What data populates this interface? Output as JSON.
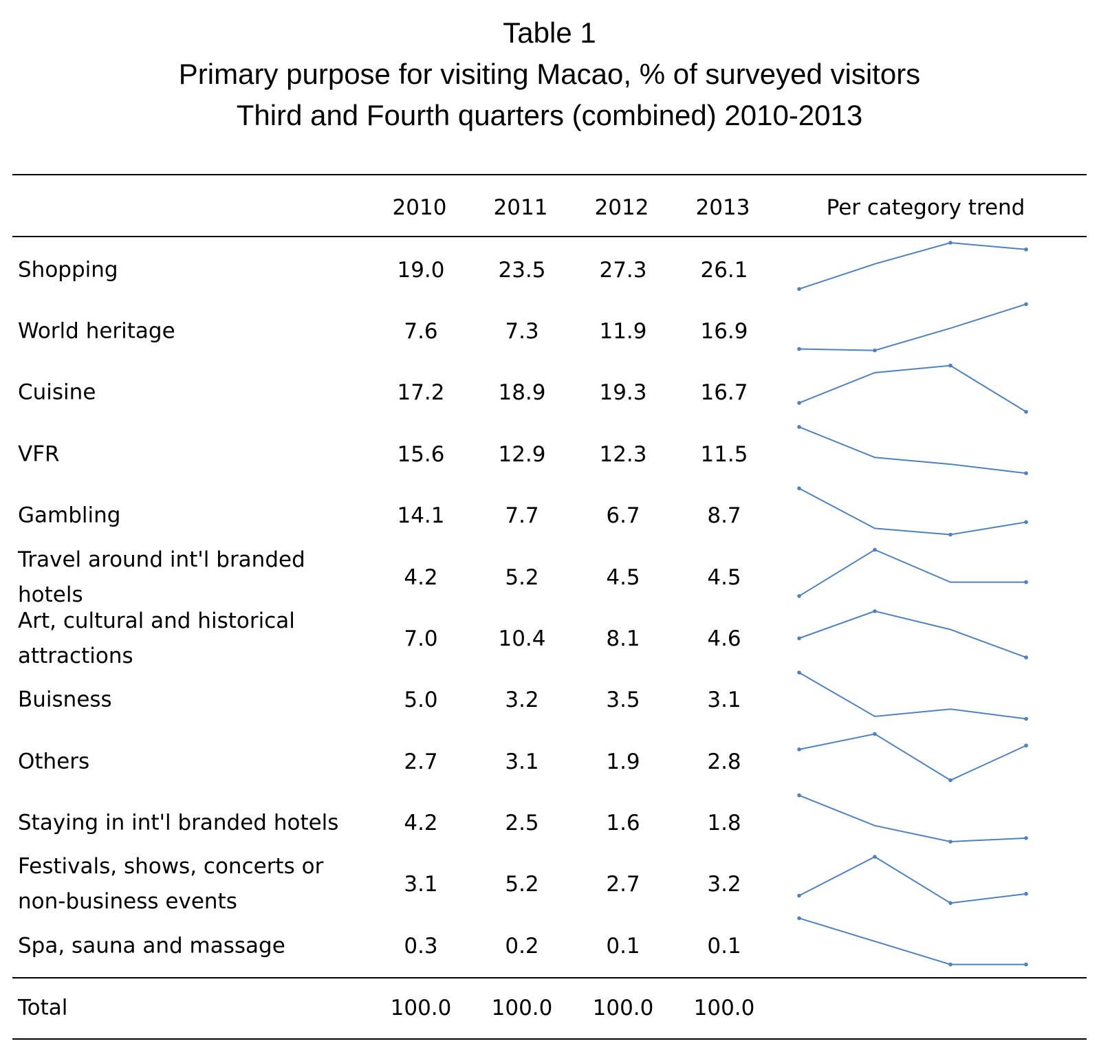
{
  "titles": {
    "line1": "Table 1",
    "line2": "Primary purpose for visiting Macao, % of surveyed visitors",
    "line3": "Third and Fourth quarters (combined) 2010-2013"
  },
  "header": {
    "years": [
      "2010",
      "2011",
      "2012",
      "2013"
    ],
    "trend": "Per category trend"
  },
  "rows": [
    {
      "category": "Shopping",
      "values": [
        "19.0",
        "23.5",
        "27.3",
        "26.1"
      ]
    },
    {
      "category": "World heritage",
      "values": [
        "7.6",
        "7.3",
        "11.9",
        "16.9"
      ]
    },
    {
      "category": "Cuisine",
      "values": [
        "17.2",
        "18.9",
        "19.3",
        "16.7"
      ]
    },
    {
      "category": "VFR",
      "values": [
        "15.6",
        "12.9",
        "12.3",
        "11.5"
      ]
    },
    {
      "category": "Gambling",
      "values": [
        "14.1",
        "7.7",
        "6.7",
        "8.7"
      ]
    },
    {
      "category": "Travel around int'l branded hotels",
      "values": [
        "4.2",
        "5.2",
        "4.5",
        "4.5"
      ]
    },
    {
      "category": "Art, cultural and historical attractions",
      "values": [
        "7.0",
        "10.4",
        "8.1",
        "4.6"
      ]
    },
    {
      "category": "Buisness",
      "values": [
        "5.0",
        "3.2",
        "3.5",
        "3.1"
      ]
    },
    {
      "category": "Others",
      "values": [
        "2.7",
        "3.1",
        "1.9",
        "2.8"
      ]
    },
    {
      "category": "Staying in int'l branded hotels",
      "values": [
        "4.2",
        "2.5",
        "1.6",
        "1.8"
      ]
    },
    {
      "category": "Festivals, shows, concerts or non-business events",
      "values": [
        "3.1",
        "5.2",
        "2.7",
        "3.2"
      ]
    },
    {
      "category": "Spa, sauna and massage",
      "values": [
        "0.3",
        "0.2",
        "0.1",
        "0.1"
      ]
    }
  ],
  "total": {
    "category": "Total",
    "values": [
      "100.0",
      "100.0",
      "100.0",
      "100.0"
    ]
  },
  "colors": {
    "sparkline": "#4f81bd",
    "rule": "#000000"
  },
  "chart_data": {
    "type": "table",
    "title": "Table 1",
    "subtitle": "Primary purpose for visiting Macao, % of surveyed visitors",
    "subtitle2": "Third and Fourth quarters (combined) 2010-2013",
    "columns": [
      "2010",
      "2011",
      "2012",
      "2013"
    ],
    "trend_column": "Per category trend",
    "series": [
      {
        "name": "Shopping",
        "values": [
          19.0,
          23.5,
          27.3,
          26.1
        ]
      },
      {
        "name": "World heritage",
        "values": [
          7.6,
          7.3,
          11.9,
          16.9
        ]
      },
      {
        "name": "Cuisine",
        "values": [
          17.2,
          18.9,
          19.3,
          16.7
        ]
      },
      {
        "name": "VFR",
        "values": [
          15.6,
          12.9,
          12.3,
          11.5
        ]
      },
      {
        "name": "Gambling",
        "values": [
          14.1,
          7.7,
          6.7,
          8.7
        ]
      },
      {
        "name": "Travel around int'l branded hotels",
        "values": [
          4.2,
          5.2,
          4.5,
          4.5
        ]
      },
      {
        "name": "Art, cultural and historical attractions",
        "values": [
          7.0,
          10.4,
          8.1,
          4.6
        ]
      },
      {
        "name": "Buisness",
        "values": [
          5.0,
          3.2,
          3.5,
          3.1
        ]
      },
      {
        "name": "Others",
        "values": [
          2.7,
          3.1,
          1.9,
          2.8
        ]
      },
      {
        "name": "Staying in int'l branded hotels",
        "values": [
          4.2,
          2.5,
          1.6,
          1.8
        ]
      },
      {
        "name": "Festivals, shows, concerts or non-business events",
        "values": [
          3.1,
          5.2,
          2.7,
          3.2
        ]
      },
      {
        "name": "Spa, sauna and massage",
        "values": [
          0.3,
          0.2,
          0.1,
          0.1
        ]
      }
    ],
    "total": [
      100.0,
      100.0,
      100.0,
      100.0
    ],
    "trend_type": "line"
  }
}
